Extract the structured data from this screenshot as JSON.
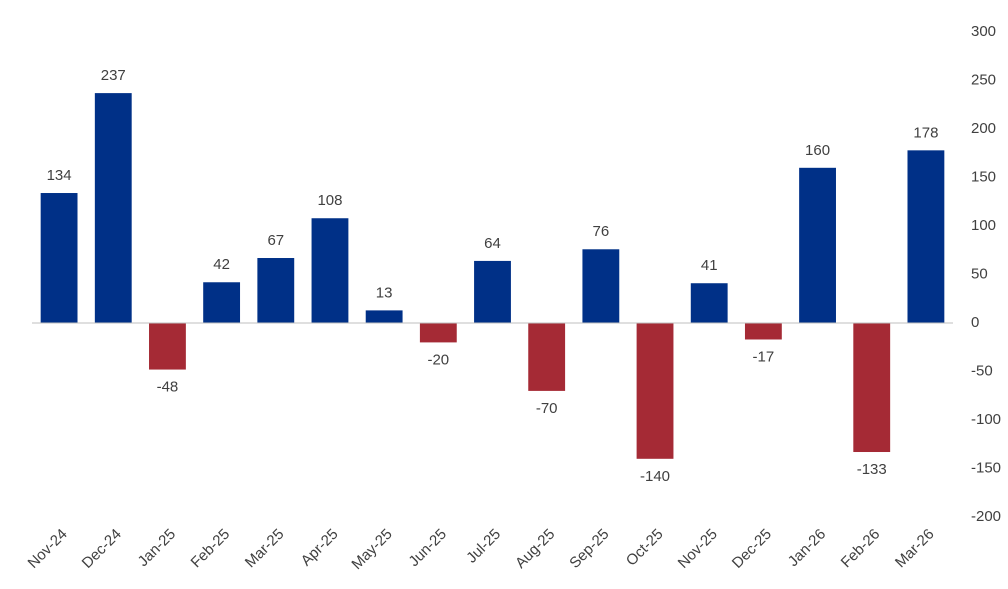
{
  "chart_data": {
    "type": "bar",
    "categories": [
      "Nov-24",
      "Dec-24",
      "Jan-25",
      "Feb-25",
      "Mar-25",
      "Apr-25",
      "May-25",
      "Jun-25",
      "Jul-25",
      "Aug-25",
      "Sep-25",
      "Oct-25",
      "Nov-25",
      "Dec-25",
      "Jan-26",
      "Feb-26",
      "Mar-26"
    ],
    "values": [
      134,
      237,
      -48,
      42,
      67,
      108,
      13,
      -20,
      64,
      -70,
      76,
      -140,
      41,
      -17,
      160,
      -133,
      178
    ],
    "color": "#003087",
    "negative_color": "#a52a35",
    "ylim": [
      -200,
      300
    ],
    "yticks": [
      -200,
      -150,
      -100,
      -50,
      0,
      50,
      100,
      150,
      200,
      250,
      300
    ],
    "y_axis_side": "right",
    "grid": false
  }
}
